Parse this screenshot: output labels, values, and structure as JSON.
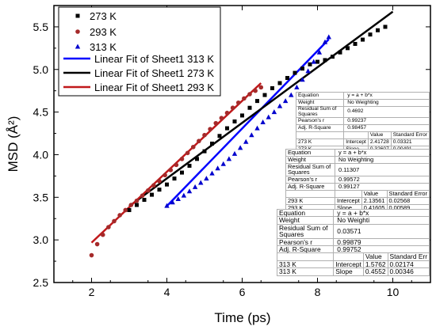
{
  "chart_data": {
    "type": "scatter",
    "xlabel": "Time (ps)",
    "ylabel": "MSD (Å²)",
    "xlim": [
      1,
      11
    ],
    "ylim": [
      2.5,
      5.75
    ],
    "xticks": [
      "2",
      "4",
      "6",
      "8",
      "10"
    ],
    "yticks": [
      "2.5",
      "3.0",
      "3.5",
      "4.0",
      "4.5",
      "5.0",
      "5.5"
    ],
    "legend_position": "top-left",
    "legend": [
      "273 K",
      "293 K",
      "313 K",
      "Linear Fit of Sheet1 313 K",
      "Linear Fit of Sheet1 273 K",
      "Linear Fit of Sheet1 293 K"
    ],
    "series": [
      {
        "name": "273 K",
        "marker": "square",
        "color": "#000000",
        "x": [
          3.0,
          3.2,
          3.4,
          3.6,
          3.8,
          4.0,
          4.2,
          4.4,
          4.6,
          4.8,
          5.0,
          5.2,
          5.4,
          5.6,
          5.8,
          6.0,
          6.2,
          6.4,
          6.6,
          6.8,
          7.0,
          7.2,
          7.4,
          7.6,
          7.8,
          8.0,
          8.2,
          8.4,
          8.6,
          8.8,
          9.0,
          9.2,
          9.4,
          9.6,
          9.8
        ],
        "y": [
          3.35,
          3.41,
          3.47,
          3.53,
          3.59,
          3.65,
          3.72,
          3.79,
          3.87,
          3.95,
          4.04,
          4.13,
          4.22,
          4.31,
          4.39,
          4.46,
          4.55,
          4.63,
          4.7,
          4.78,
          4.84,
          4.9,
          4.96,
          5.01,
          5.06,
          5.09,
          5.11,
          5.15,
          5.2,
          5.25,
          5.3,
          5.35,
          5.41,
          5.46,
          5.5
        ]
      },
      {
        "name": "293 K",
        "marker": "circle",
        "color": "#a52a2a",
        "x": [
          2.0,
          2.15,
          2.3,
          2.45,
          2.6,
          2.75,
          2.9,
          3.05,
          3.2,
          3.35,
          3.5,
          3.65,
          3.8,
          3.95,
          4.1,
          4.25,
          4.4,
          4.55,
          4.7,
          4.85,
          5.0,
          5.15,
          5.3,
          5.45,
          5.6,
          5.75,
          5.9,
          6.05,
          6.2,
          6.35,
          6.5
        ],
        "y": [
          2.82,
          2.95,
          3.06,
          3.15,
          3.22,
          3.29,
          3.35,
          3.41,
          3.46,
          3.52,
          3.58,
          3.64,
          3.69,
          3.76,
          3.82,
          3.88,
          3.95,
          4.02,
          4.09,
          4.16,
          4.23,
          4.3,
          4.37,
          4.43,
          4.49,
          4.55,
          4.61,
          4.66,
          4.71,
          4.75,
          4.79
        ]
      },
      {
        "name": "313 K",
        "marker": "triangle",
        "color": "#0000cd",
        "x": [
          4.0,
          4.15,
          4.3,
          4.45,
          4.6,
          4.75,
          4.9,
          5.05,
          5.2,
          5.35,
          5.5,
          5.65,
          5.8,
          5.95,
          6.1,
          6.25,
          6.4,
          6.55,
          6.7,
          6.85,
          7.0,
          7.15,
          7.3,
          7.45,
          7.6,
          7.75,
          7.9,
          8.05,
          8.2,
          8.3
        ],
        "y": [
          3.4,
          3.44,
          3.48,
          3.52,
          3.57,
          3.62,
          3.67,
          3.72,
          3.78,
          3.84,
          3.89,
          3.95,
          4.01,
          4.08,
          4.15,
          4.23,
          4.31,
          4.38,
          4.44,
          4.5,
          4.57,
          4.63,
          4.7,
          4.79,
          4.88,
          4.98,
          5.09,
          5.2,
          5.32,
          5.38
        ]
      }
    ],
    "fits": [
      {
        "name": "Linear Fit of Sheet1 313 K",
        "color": "#0000ff",
        "x": [
          4.0,
          8.3
        ],
        "intercept": 1.5762,
        "slope": 0.4552
      },
      {
        "name": "Linear Fit of Sheet1 273 K",
        "color": "#000000",
        "x": [
          3.0,
          10.0
        ],
        "intercept": 2.41728,
        "slope": 0.32607
      },
      {
        "name": "Linear Fit of Sheet1 293 K",
        "color": "#c0181a",
        "x": [
          2.0,
          6.5
        ],
        "intercept": 2.13561,
        "slope": 0.41605
      }
    ]
  },
  "tables": [
    {
      "rows": [
        [
          "Equation",
          "y = a + b*x",
          "",
          ""
        ],
        [
          "Weight",
          "No Weighting",
          "",
          ""
        ],
        [
          "Residual Sum of Squares",
          "0.4692",
          "",
          ""
        ],
        [
          "Pearson's r",
          "0.99237",
          "",
          ""
        ],
        [
          "Adj. R-Square",
          "0.98457",
          "",
          ""
        ],
        [
          "",
          "",
          "Value",
          "Standard Error"
        ],
        [
          "273 K",
          "Intercept",
          "2.41728",
          "0.03321"
        ],
        [
          "273 K",
          "Slope",
          "0.32607",
          "0.00491"
        ]
      ]
    },
    {
      "rows": [
        [
          "Equation",
          "y = a + b*x",
          "",
          ""
        ],
        [
          "Weight",
          "No Weighting",
          "",
          ""
        ],
        [
          "Residual Sum of Squares",
          "0.11307",
          "",
          ""
        ],
        [
          "Pearson's r",
          "0.99572",
          "",
          ""
        ],
        [
          "Adj. R-Square",
          "0.99127",
          "",
          ""
        ],
        [
          "",
          "",
          "Value",
          "Standard Error"
        ],
        [
          "293 K",
          "Intercept",
          "2.13561",
          "0.02568"
        ],
        [
          "293 K",
          "Slope",
          "0.41605",
          "0.00589"
        ]
      ]
    },
    {
      "rows": [
        [
          "Equation",
          "y = a + b*x",
          "",
          ""
        ],
        [
          "Weight",
          "No Weighti",
          "",
          ""
        ],
        [
          "Residual Sum of Squares",
          "0.03571",
          "",
          ""
        ],
        [
          "Pearson's r",
          "0.99879",
          "",
          ""
        ],
        [
          "Adj. R-Square",
          "0.99752",
          "",
          ""
        ],
        [
          "",
          "",
          "Value",
          "Standard Err"
        ],
        [
          "313 K",
          "Intercept",
          "1.5762",
          "0.02174"
        ],
        [
          "313 K",
          "Slope",
          "0.4552",
          "0.00346"
        ]
      ]
    }
  ]
}
